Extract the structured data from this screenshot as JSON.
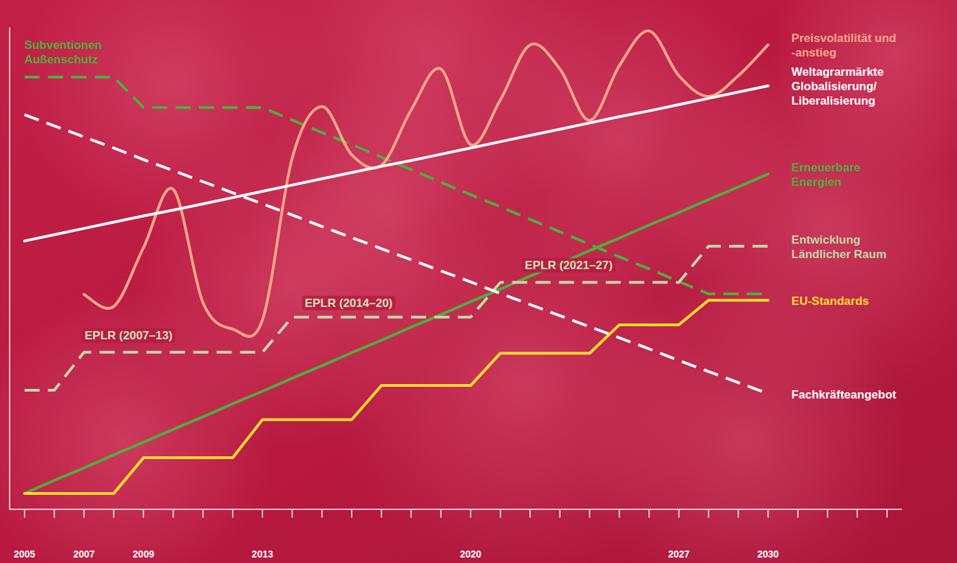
{
  "chart_data": {
    "type": "line",
    "categories": [
      "2005",
      null,
      "2007",
      null,
      "2009",
      null,
      null,
      null,
      "2013",
      null,
      null,
      null,
      null,
      null,
      null,
      "2020",
      null,
      null,
      null,
      null,
      null,
      null,
      "2027",
      null,
      null,
      "2030",
      null,
      null,
      null,
      null
    ],
    "ylim": [
      0,
      100
    ],
    "grid": false,
    "tick_labels": "x",
    "series": [
      {
        "name": "Subventionen Außenschutz",
        "color": "#4fae3c",
        "line_style": "dashed",
        "values": [
          89.7,
          89.7,
          89.7,
          89.7,
          83.4,
          83.4,
          83.4,
          83.4,
          83.4,
          80.8,
          78.2,
          75.7,
          73.1,
          70.5,
          67.9,
          65.3,
          62.8,
          60.2,
          57.6,
          55.0,
          52.4,
          49.9,
          47.3,
          44.7,
          44.7,
          44.7,
          null,
          null,
          null,
          null
        ]
      },
      {
        "name": "Preisvolatilität und -anstieg",
        "color": "#f6a886",
        "line_style": "curved",
        "values": [
          null,
          null,
          44.6,
          42.1,
          54.3,
          66.4,
          42.9,
          37.4,
          39.3,
          72.9,
          83.6,
          73.6,
          71.4,
          82.9,
          91.4,
          75.7,
          85.0,
          96.4,
          91.4,
          80.7,
          92.1,
          99.3,
          90.0,
          85.7,
          90.0,
          96.4,
          null,
          null,
          null,
          null
        ]
      },
      {
        "name": "Weltagrarmärkte Globalisierung/ Liberalisierung",
        "color": "#ffffff",
        "line_style": "solid",
        "values": [
          55.7,
          57.0,
          58.3,
          59.6,
          60.9,
          62.1,
          63.4,
          64.7,
          66.0,
          67.3,
          68.6,
          69.9,
          71.2,
          72.4,
          73.7,
          75.0,
          76.3,
          77.6,
          78.9,
          80.2,
          81.5,
          82.7,
          84.0,
          85.3,
          86.6,
          87.9,
          null,
          null,
          null,
          null
        ]
      },
      {
        "name": "Erneuerbare Energien",
        "color": "#4fae3c",
        "line_style": "solid",
        "values": [
          3.3,
          6.0,
          8.6,
          11.3,
          13.9,
          16.6,
          19.2,
          21.9,
          24.5,
          27.2,
          29.8,
          32.5,
          35.1,
          37.8,
          40.4,
          43.1,
          45.7,
          48.4,
          51.0,
          53.7,
          56.3,
          59.0,
          61.6,
          64.3,
          66.9,
          69.6,
          null,
          null,
          null,
          null
        ]
      },
      {
        "name": "Entwicklung Ländlicher Raum",
        "color": "#c3d9a6",
        "line_style": "dashed",
        "values": [
          24.7,
          24.7,
          32.6,
          32.6,
          32.6,
          32.6,
          32.6,
          32.6,
          32.6,
          39.9,
          39.9,
          39.9,
          39.9,
          39.9,
          39.9,
          39.9,
          47.1,
          47.1,
          47.1,
          47.1,
          47.1,
          47.1,
          47.1,
          54.6,
          54.6,
          54.6,
          null,
          null,
          null,
          null
        ]
      },
      {
        "name": "EU-Standards",
        "color": "#ffdc2e",
        "line_style": "solid",
        "values": [
          3.3,
          3.3,
          3.3,
          3.3,
          10.7,
          10.7,
          10.7,
          10.7,
          18.6,
          18.6,
          18.6,
          18.6,
          25.7,
          25.7,
          25.7,
          25.7,
          32.4,
          32.4,
          32.4,
          32.4,
          38.3,
          38.3,
          38.3,
          43.4,
          43.4,
          43.4,
          null,
          null,
          null,
          null
        ]
      },
      {
        "name": "Fachkräfteangebot",
        "color": "#ffffff",
        "line_style": "dashed",
        "values": [
          81.9,
          79.6,
          77.3,
          75.0,
          72.6,
          70.3,
          68.0,
          65.7,
          63.4,
          61.1,
          58.7,
          56.4,
          54.1,
          51.8,
          49.5,
          47.2,
          44.8,
          42.5,
          40.2,
          37.9,
          35.6,
          33.3,
          30.9,
          28.6,
          26.3,
          24.0,
          null,
          null,
          null,
          null
        ]
      }
    ],
    "annotations": [
      {
        "text": "EPLR (2007–13)",
        "x": 3.5,
        "y": 36.1
      },
      {
        "text": "EPLR (2014–20)",
        "x": 10.9,
        "y": 42.9
      },
      {
        "text": "EPLR (2021–27)",
        "x": 18.3,
        "y": 50.7
      }
    ]
  }
}
